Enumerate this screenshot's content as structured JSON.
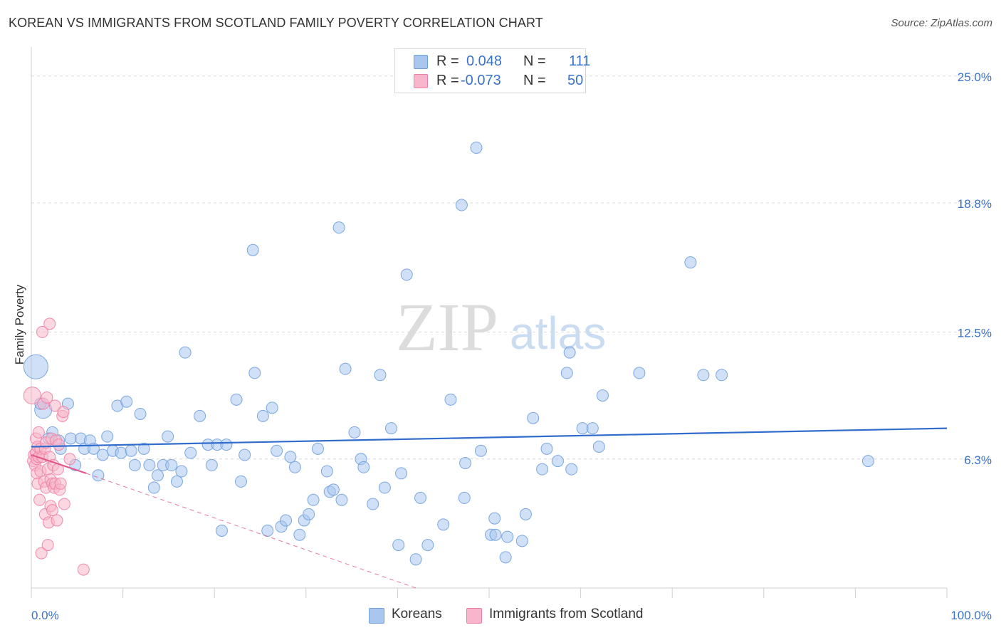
{
  "header": {
    "title": "KOREAN VS IMMIGRANTS FROM SCOTLAND FAMILY POVERTY CORRELATION CHART",
    "source": "Source: ZipAtlas.com"
  },
  "legend": {
    "rows": [
      {
        "r_label": "R =",
        "r_value": "0.048",
        "n_label": "N =",
        "n_value": "111"
      },
      {
        "r_label": "R =",
        "r_value": "-0.073",
        "n_label": "N =",
        "n_value": "50"
      }
    ]
  },
  "bottom_legend": [
    "Koreans",
    "Immigrants from Scotland"
  ],
  "watermark": {
    "zip": "ZIP",
    "atlas": "atlas"
  },
  "colors": {
    "korean_fill": "#a9c6ef",
    "korean_stroke": "#6f9fdc",
    "korean_line": "#2f6ccc",
    "scot_fill": "#f7b6cb",
    "scot_stroke": "#ee7fa3",
    "scot_line": "#e2578a",
    "axis_text": "#3a72c8",
    "grid": "#d9d9d9"
  },
  "chart_data": {
    "type": "scatter",
    "title": "KOREAN VS IMMIGRANTS FROM SCOTLAND FAMILY POVERTY CORRELATION CHART",
    "xlabel": "",
    "ylabel": "Family Poverty",
    "xlim": [
      0,
      100
    ],
    "ylim": [
      0,
      26
    ],
    "x_tick_labels": [
      "0.0%",
      "100.0%"
    ],
    "y_ticks": [
      6.3,
      12.5,
      18.8,
      25.0
    ],
    "y_tick_labels": [
      "6.3%",
      "12.5%",
      "18.8%",
      "25.0%"
    ],
    "grid": true,
    "series": [
      {
        "name": "Koreans",
        "r": 0.048,
        "n": 111,
        "trend": {
          "x": [
            0,
            100
          ],
          "y": [
            6.9,
            7.8
          ]
        },
        "points": [
          {
            "x": 0.5,
            "y": 10.8,
            "s": 3
          },
          {
            "x": 1.3,
            "y": 8.7,
            "s": 2
          },
          {
            "x": 1.0,
            "y": 9.0
          },
          {
            "x": 2.3,
            "y": 7.6
          },
          {
            "x": 1.9,
            "y": 7.3
          },
          {
            "x": 3.0,
            "y": 7.2
          },
          {
            "x": 3.2,
            "y": 6.8
          },
          {
            "x": 4.0,
            "y": 9.0
          },
          {
            "x": 4.3,
            "y": 7.3
          },
          {
            "x": 4.8,
            "y": 6.0
          },
          {
            "x": 5.4,
            "y": 7.3
          },
          {
            "x": 5.8,
            "y": 6.8
          },
          {
            "x": 6.4,
            "y": 7.2
          },
          {
            "x": 6.8,
            "y": 6.8
          },
          {
            "x": 7.3,
            "y": 5.5
          },
          {
            "x": 7.8,
            "y": 6.5
          },
          {
            "x": 8.3,
            "y": 7.4
          },
          {
            "x": 8.9,
            "y": 6.7
          },
          {
            "x": 9.4,
            "y": 8.9
          },
          {
            "x": 9.8,
            "y": 6.6
          },
          {
            "x": 10.4,
            "y": 9.1
          },
          {
            "x": 10.9,
            "y": 6.7
          },
          {
            "x": 11.3,
            "y": 6.0
          },
          {
            "x": 11.9,
            "y": 8.5
          },
          {
            "x": 12.3,
            "y": 6.8
          },
          {
            "x": 12.9,
            "y": 6.0
          },
          {
            "x": 13.4,
            "y": 4.9
          },
          {
            "x": 13.8,
            "y": 5.5
          },
          {
            "x": 14.4,
            "y": 6.0
          },
          {
            "x": 14.9,
            "y": 7.4
          },
          {
            "x": 15.3,
            "y": 6.0
          },
          {
            "x": 15.9,
            "y": 5.2
          },
          {
            "x": 16.4,
            "y": 5.7
          },
          {
            "x": 16.8,
            "y": 11.5
          },
          {
            "x": 17.4,
            "y": 6.6
          },
          {
            "x": 18.4,
            "y": 8.4
          },
          {
            "x": 19.3,
            "y": 7.0
          },
          {
            "x": 19.7,
            "y": 6.0
          },
          {
            "x": 20.3,
            "y": 7.0
          },
          {
            "x": 20.8,
            "y": 2.8
          },
          {
            "x": 21.3,
            "y": 7.0
          },
          {
            "x": 22.4,
            "y": 9.2
          },
          {
            "x": 22.9,
            "y": 5.2
          },
          {
            "x": 23.3,
            "y": 6.5
          },
          {
            "x": 24.2,
            "y": 16.5
          },
          {
            "x": 24.4,
            "y": 10.5
          },
          {
            "x": 25.3,
            "y": 8.4
          },
          {
            "x": 25.8,
            "y": 2.8
          },
          {
            "x": 26.3,
            "y": 8.8
          },
          {
            "x": 26.8,
            "y": 6.7
          },
          {
            "x": 27.3,
            "y": 3.0
          },
          {
            "x": 27.8,
            "y": 3.3
          },
          {
            "x": 28.3,
            "y": 6.4
          },
          {
            "x": 28.8,
            "y": 5.9
          },
          {
            "x": 29.3,
            "y": 2.6
          },
          {
            "x": 29.8,
            "y": 3.3
          },
          {
            "x": 30.3,
            "y": 3.6
          },
          {
            "x": 30.8,
            "y": 4.3
          },
          {
            "x": 31.3,
            "y": 6.8
          },
          {
            "x": 32.3,
            "y": 5.7
          },
          {
            "x": 32.6,
            "y": 4.7
          },
          {
            "x": 33.0,
            "y": 4.8
          },
          {
            "x": 33.6,
            "y": 17.6
          },
          {
            "x": 33.9,
            "y": 4.3
          },
          {
            "x": 34.3,
            "y": 10.7
          },
          {
            "x": 35.3,
            "y": 7.6
          },
          {
            "x": 36.0,
            "y": 6.3
          },
          {
            "x": 36.3,
            "y": 5.9
          },
          {
            "x": 37.3,
            "y": 4.1
          },
          {
            "x": 38.1,
            "y": 10.4
          },
          {
            "x": 38.6,
            "y": 4.9
          },
          {
            "x": 39.3,
            "y": 7.8
          },
          {
            "x": 40.1,
            "y": 2.1
          },
          {
            "x": 40.4,
            "y": 5.6
          },
          {
            "x": 41.0,
            "y": 15.3
          },
          {
            "x": 42.0,
            "y": 1.4
          },
          {
            "x": 42.5,
            "y": 4.4
          },
          {
            "x": 43.3,
            "y": 2.1
          },
          {
            "x": 45.0,
            "y": 3.1
          },
          {
            "x": 45.8,
            "y": 9.2
          },
          {
            "x": 47.0,
            "y": 18.7
          },
          {
            "x": 47.3,
            "y": 4.4
          },
          {
            "x": 47.4,
            "y": 6.1
          },
          {
            "x": 48.6,
            "y": 21.5
          },
          {
            "x": 49.1,
            "y": 6.7
          },
          {
            "x": 50.2,
            "y": 2.6
          },
          {
            "x": 50.6,
            "y": 3.4
          },
          {
            "x": 50.7,
            "y": 2.6
          },
          {
            "x": 51.8,
            "y": 1.5
          },
          {
            "x": 52.0,
            "y": 2.5
          },
          {
            "x": 53.6,
            "y": 2.3
          },
          {
            "x": 54.0,
            "y": 3.6
          },
          {
            "x": 54.8,
            "y": 8.3
          },
          {
            "x": 55.8,
            "y": 5.8
          },
          {
            "x": 56.3,
            "y": 6.8
          },
          {
            "x": 57.5,
            "y": 6.2
          },
          {
            "x": 58.5,
            "y": 10.5
          },
          {
            "x": 58.8,
            "y": 11.5
          },
          {
            "x": 59.0,
            "y": 5.8
          },
          {
            "x": 60.2,
            "y": 7.8
          },
          {
            "x": 61.3,
            "y": 7.8
          },
          {
            "x": 62.0,
            "y": 6.9
          },
          {
            "x": 62.4,
            "y": 9.4
          },
          {
            "x": 66.4,
            "y": 10.5
          },
          {
            "x": 72.0,
            "y": 15.9
          },
          {
            "x": 73.4,
            "y": 10.4
          },
          {
            "x": 75.4,
            "y": 10.4
          },
          {
            "x": 91.4,
            "y": 6.2
          }
        ]
      },
      {
        "name": "Immigrants from Scotland",
        "r": -0.073,
        "n": 50,
        "trend": {
          "x": [
            0,
            6
          ],
          "y": [
            6.5,
            5.6
          ]
        },
        "trend_dashed": {
          "x": [
            6,
            42
          ],
          "y": [
            5.6,
            0
          ]
        },
        "points": [
          {
            "x": 0.1,
            "y": 9.4,
            "s": 2
          },
          {
            "x": 0.2,
            "y": 6.2
          },
          {
            "x": 0.3,
            "y": 6.5
          },
          {
            "x": 0.4,
            "y": 6.0
          },
          {
            "x": 0.5,
            "y": 7.3
          },
          {
            "x": 0.5,
            "y": 6.6
          },
          {
            "x": 0.6,
            "y": 6.3
          },
          {
            "x": 0.6,
            "y": 5.6
          },
          {
            "x": 0.7,
            "y": 6.9
          },
          {
            "x": 0.7,
            "y": 5.1
          },
          {
            "x": 0.8,
            "y": 7.6
          },
          {
            "x": 0.8,
            "y": 6.4
          },
          {
            "x": 0.9,
            "y": 4.3
          },
          {
            "x": 1.0,
            "y": 6.8
          },
          {
            "x": 1.0,
            "y": 5.7
          },
          {
            "x": 1.1,
            "y": 1.7
          },
          {
            "x": 1.2,
            "y": 12.5
          },
          {
            "x": 1.2,
            "y": 6.4
          },
          {
            "x": 1.3,
            "y": 9.0
          },
          {
            "x": 1.4,
            "y": 5.2
          },
          {
            "x": 1.5,
            "y": 6.8
          },
          {
            "x": 1.5,
            "y": 3.6
          },
          {
            "x": 1.6,
            "y": 7.1
          },
          {
            "x": 1.6,
            "y": 4.9
          },
          {
            "x": 1.7,
            "y": 9.3
          },
          {
            "x": 1.8,
            "y": 5.8
          },
          {
            "x": 1.8,
            "y": 2.1
          },
          {
            "x": 1.9,
            "y": 3.2
          },
          {
            "x": 2.0,
            "y": 12.9
          },
          {
            "x": 2.0,
            "y": 6.4
          },
          {
            "x": 2.1,
            "y": 5.3
          },
          {
            "x": 2.1,
            "y": 4.0
          },
          {
            "x": 2.2,
            "y": 7.3
          },
          {
            "x": 2.3,
            "y": 5.1
          },
          {
            "x": 2.3,
            "y": 3.8
          },
          {
            "x": 2.4,
            "y": 6.0
          },
          {
            "x": 2.5,
            "y": 4.9
          },
          {
            "x": 2.6,
            "y": 8.9
          },
          {
            "x": 2.6,
            "y": 5.1
          },
          {
            "x": 2.7,
            "y": 7.2
          },
          {
            "x": 2.8,
            "y": 3.3
          },
          {
            "x": 2.9,
            "y": 5.8
          },
          {
            "x": 3.0,
            "y": 7.0
          },
          {
            "x": 3.1,
            "y": 4.8
          },
          {
            "x": 3.2,
            "y": 5.1
          },
          {
            "x": 3.4,
            "y": 8.4
          },
          {
            "x": 3.5,
            "y": 8.6
          },
          {
            "x": 3.6,
            "y": 4.1
          },
          {
            "x": 4.2,
            "y": 6.3
          },
          {
            "x": 5.7,
            "y": 0.9
          }
        ]
      }
    ]
  }
}
